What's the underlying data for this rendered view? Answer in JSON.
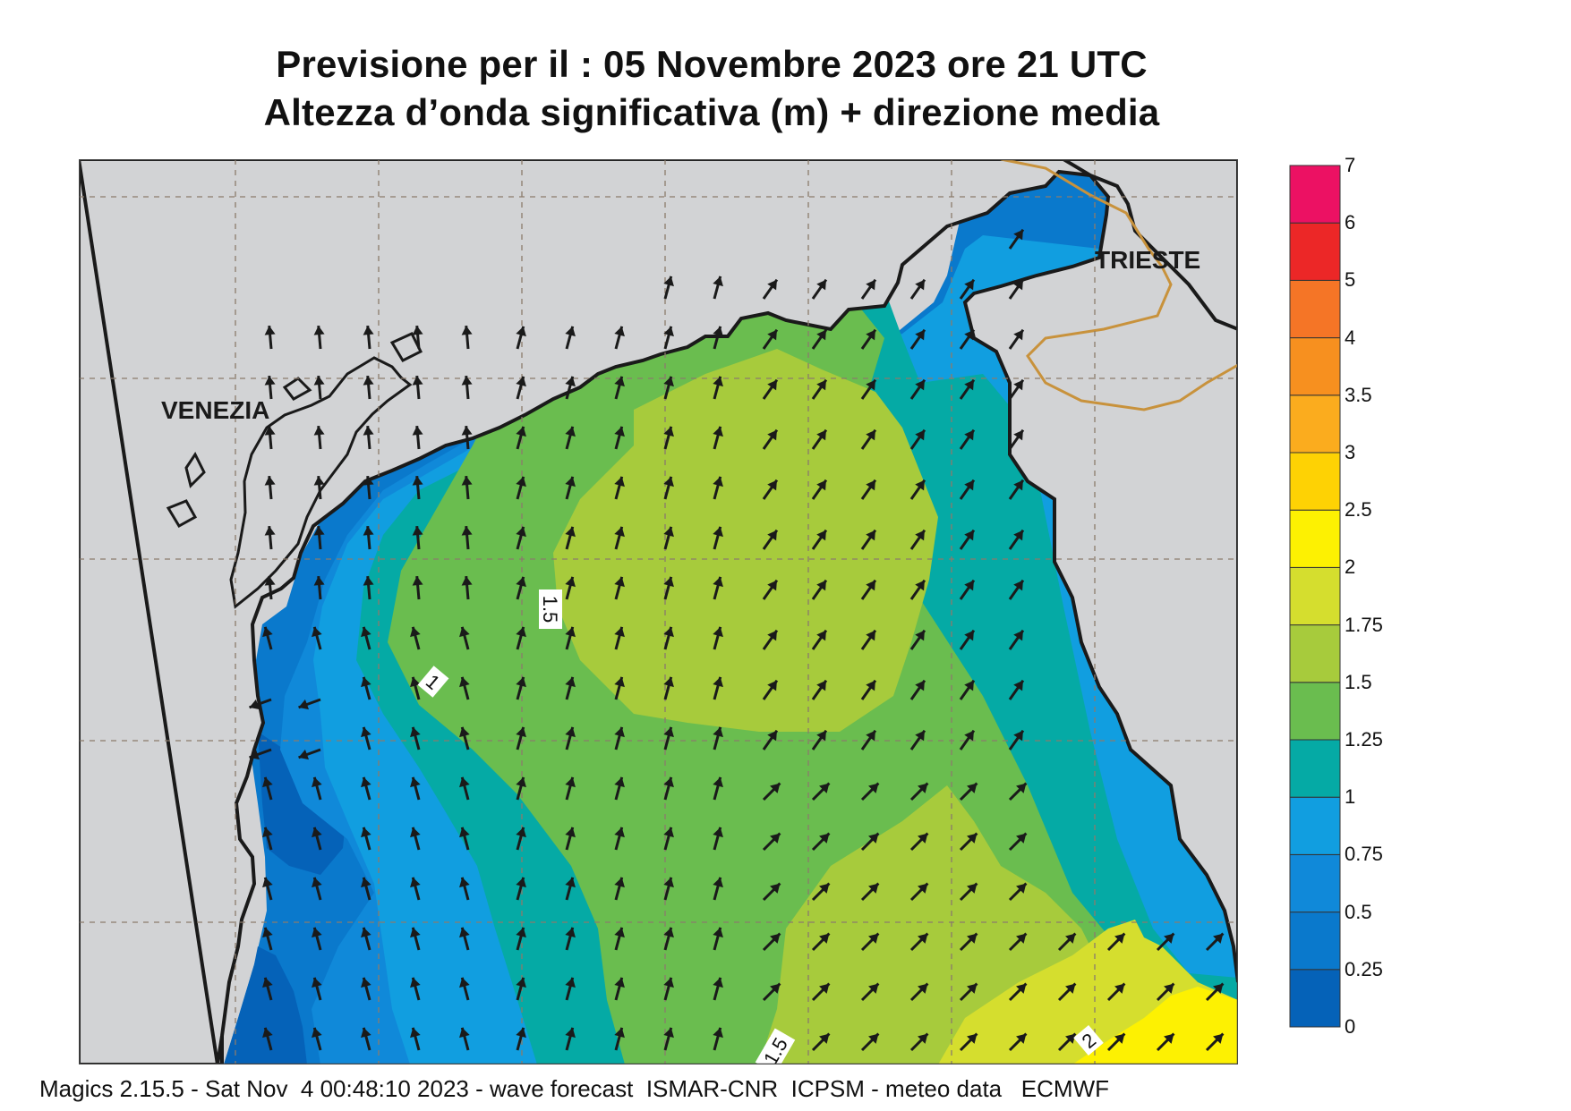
{
  "header": {
    "title_line1": "Previsione per il  :  05 Novembre  2023   ore 21 UTC",
    "title_line2": "Altezza d’onda significativa (m) + direzione media"
  },
  "map": {
    "city_labels": {
      "venezia": "VENEZIA",
      "trieste": "TRIESTE"
    },
    "contour_labels": {
      "c1": "1",
      "c15a": "1.5",
      "c15b": "1.5",
      "c2": "2"
    },
    "land_color": "#d2d3d5",
    "coast_color": "#1a1a1a",
    "border_color": "#c8923c",
    "arrow_color": "#1a1a1a"
  },
  "legend": {
    "labels": [
      "0",
      "0.25",
      "0.5",
      "0.75",
      "1",
      "1.25",
      "1.5",
      "1.75",
      "2",
      "2.5",
      "3",
      "3.5",
      "4",
      "5",
      "6",
      "7"
    ],
    "colors": [
      "#0562b8",
      "#0a79cc",
      "#1089d9",
      "#119ee0",
      "#05aaa5",
      "#6abd4f",
      "#a7cb3c",
      "#d5de2e",
      "#fdf102",
      "#fed204",
      "#fbac1e",
      "#f7901f",
      "#f57526",
      "#ec2727",
      "#ec1163"
    ]
  },
  "footer": {
    "text": "Magics 2.15.5 - Sat Nov  4 00:48:10 2023 - wave forecast  ISMAR-CNR  ICPSM - meteo data   ECMWF"
  }
}
